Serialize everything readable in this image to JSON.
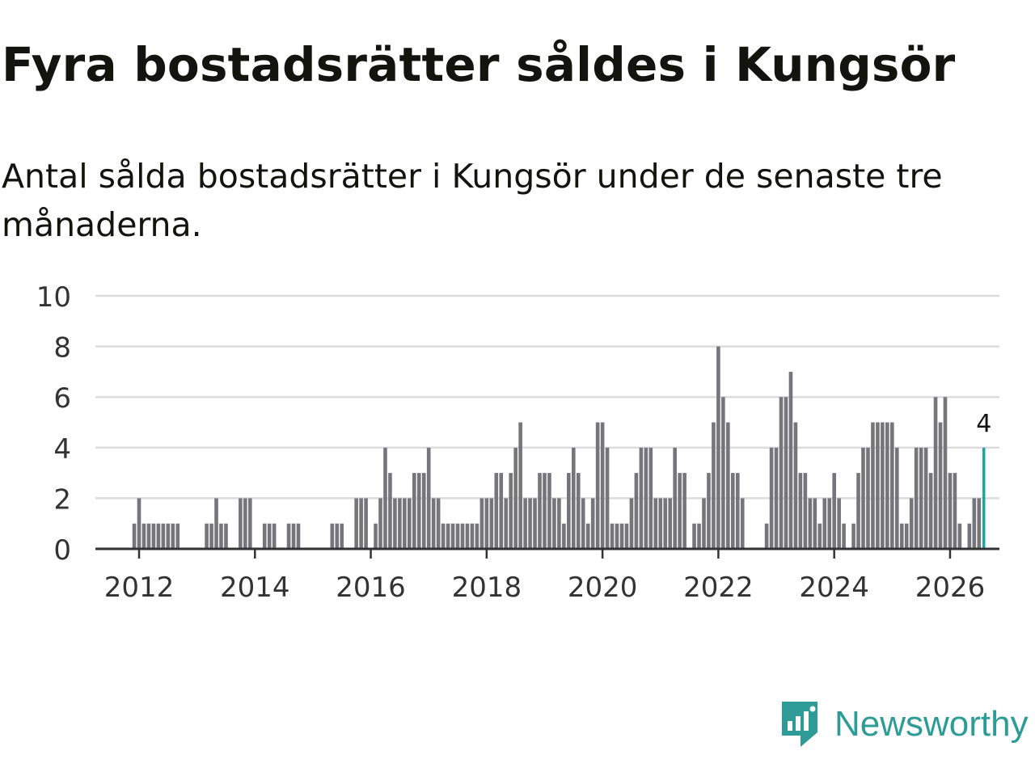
{
  "title": "Fyra bostadsrätter såldes i Kungsör",
  "subtitle": "Antal sålda bostadsrätter i Kungsör under de senaste tre månaderna.",
  "brand": {
    "name": "Newsworthy",
    "color": "#2e9b96"
  },
  "colors": {
    "bar": "#76757a",
    "highlight": "#1ba39c",
    "grid": "#dcdcdc",
    "axis": "#333333",
    "text": "#333333"
  },
  "chart_data": {
    "type": "bar",
    "title": "",
    "xlabel": "",
    "ylabel": "",
    "ylim": [
      0,
      10
    ],
    "yticks": [
      "0",
      "2",
      "4",
      "6",
      "8",
      "10"
    ],
    "xticks": [
      "2012",
      "2014",
      "2016",
      "2018",
      "2020",
      "2022",
      "2024",
      "2026"
    ],
    "start": "2011-12",
    "unit": "month",
    "highlight_label": "4",
    "values": [
      1,
      2,
      1,
      1,
      1,
      1,
      1,
      1,
      1,
      1,
      0,
      0,
      0,
      0,
      0,
      1,
      1,
      2,
      1,
      1,
      0,
      0,
      2,
      2,
      2,
      0,
      0,
      1,
      1,
      1,
      0,
      0,
      1,
      1,
      1,
      0,
      0,
      0,
      0,
      0,
      0,
      1,
      1,
      1,
      0,
      0,
      2,
      2,
      2,
      0,
      1,
      2,
      4,
      3,
      2,
      2,
      2,
      2,
      3,
      3,
      3,
      4,
      2,
      2,
      1,
      1,
      1,
      1,
      1,
      1,
      1,
      1,
      2,
      2,
      2,
      3,
      3,
      2,
      3,
      4,
      5,
      2,
      2,
      2,
      3,
      3,
      3,
      2,
      2,
      1,
      3,
      4,
      3,
      2,
      1,
      2,
      5,
      5,
      4,
      1,
      1,
      1,
      1,
      2,
      3,
      4,
      4,
      4,
      2,
      2,
      2,
      2,
      4,
      3,
      3,
      0,
      1,
      1,
      2,
      3,
      5,
      8,
      6,
      5,
      3,
      3,
      2,
      0,
      0,
      0,
      0,
      1,
      4,
      4,
      6,
      6,
      7,
      5,
      3,
      3,
      2,
      2,
      1,
      2,
      2,
      3,
      2,
      1,
      0,
      1,
      3,
      4,
      4,
      5,
      5,
      5,
      5,
      5,
      4,
      1,
      1,
      2,
      4,
      4,
      4,
      3,
      6,
      5,
      6,
      3,
      3,
      1,
      0,
      1,
      2,
      2,
      4
    ]
  }
}
